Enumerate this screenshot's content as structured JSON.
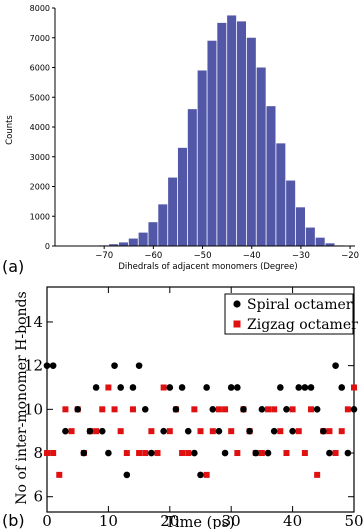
{
  "panels": {
    "a": {
      "label": "(a)"
    },
    "b": {
      "label": "(b)"
    }
  },
  "colors": {
    "bar": "#5257a8",
    "spiral": "#000000",
    "zigzag": "#e01010",
    "axis": "#000000"
  },
  "chart_data": [
    {
      "type": "bar",
      "panel": "a",
      "xlabel": "Dihedrals of adjacent monomers (Degree)",
      "ylabel": "Counts",
      "xlim": [
        -80,
        -19
      ],
      "ylim": [
        0,
        8000
      ],
      "xticks": [
        -70,
        -60,
        -50,
        -40,
        -30,
        -20
      ],
      "yticks": [
        0,
        1000,
        2000,
        3000,
        4000,
        5000,
        6000,
        7000,
        8000
      ],
      "bin_width": 2,
      "bin_starts": [
        -73,
        -71,
        -69,
        -67,
        -65,
        -63,
        -61,
        -59,
        -57,
        -55,
        -53,
        -51,
        -49,
        -47,
        -45,
        -43,
        -41,
        -39,
        -37,
        -35,
        -33,
        -31,
        -29,
        -27,
        -25,
        -23
      ],
      "values": [
        10,
        20,
        60,
        120,
        250,
        450,
        800,
        1400,
        2300,
        3300,
        4600,
        5900,
        6900,
        7500,
        7750,
        7550,
        7000,
        6000,
        4700,
        3450,
        2200,
        1300,
        620,
        280,
        90,
        20
      ]
    },
    {
      "type": "scatter",
      "panel": "b",
      "xlabel": "Time (ps)",
      "ylabel": "No of inter-monomer H-bonds",
      "xlim": [
        0,
        50
      ],
      "ylim": [
        5.3,
        15.6
      ],
      "xticks": [
        0,
        10,
        20,
        30,
        40,
        50
      ],
      "yticks": [
        6,
        8,
        10,
        12,
        14
      ],
      "legend_position": "top-right",
      "series": [
        {
          "name": "Spiral octamer",
          "marker": "circle",
          "points": [
            [
              0,
              12
            ],
            [
              1,
              12
            ],
            [
              3,
              9
            ],
            [
              5,
              10
            ],
            [
              6,
              8
            ],
            [
              7,
              9
            ],
            [
              8,
              11
            ],
            [
              9,
              9
            ],
            [
              10,
              8
            ],
            [
              11,
              12
            ],
            [
              12,
              11
            ],
            [
              13,
              7
            ],
            [
              14,
              11
            ],
            [
              15,
              12
            ],
            [
              16,
              10
            ],
            [
              17,
              8
            ],
            [
              19,
              9
            ],
            [
              20,
              11
            ],
            [
              21,
              10
            ],
            [
              22,
              11
            ],
            [
              23,
              9
            ],
            [
              24,
              8
            ],
            [
              25,
              7
            ],
            [
              26,
              11
            ],
            [
              27,
              10
            ],
            [
              28,
              9
            ],
            [
              29,
              8
            ],
            [
              30,
              11
            ],
            [
              31,
              11
            ],
            [
              32,
              10
            ],
            [
              33,
              9
            ],
            [
              34,
              8
            ],
            [
              35,
              10
            ],
            [
              36,
              8
            ],
            [
              37,
              9
            ],
            [
              38,
              11
            ],
            [
              39,
              10
            ],
            [
              40,
              9
            ],
            [
              41,
              11
            ],
            [
              42,
              11
            ],
            [
              43,
              11
            ],
            [
              44,
              10
            ],
            [
              45,
              9
            ],
            [
              46,
              8
            ],
            [
              47,
              12
            ],
            [
              48,
              11
            ],
            [
              49,
              8
            ],
            [
              50,
              10
            ]
          ]
        },
        {
          "name": "Zigzag octamer",
          "marker": "square",
          "points": [
            [
              0,
              8
            ],
            [
              1,
              8
            ],
            [
              2,
              7
            ],
            [
              3,
              10
            ],
            [
              4,
              9
            ],
            [
              5,
              10
            ],
            [
              6,
              8
            ],
            [
              7,
              9
            ],
            [
              8,
              9
            ],
            [
              9,
              10
            ],
            [
              10,
              11
            ],
            [
              11,
              10
            ],
            [
              12,
              9
            ],
            [
              13,
              8
            ],
            [
              14,
              10
            ],
            [
              15,
              8
            ],
            [
              16,
              8
            ],
            [
              17,
              9
            ],
            [
              18,
              8
            ],
            [
              19,
              11
            ],
            [
              20,
              9
            ],
            [
              21,
              10
            ],
            [
              22,
              8
            ],
            [
              23,
              8
            ],
            [
              24,
              10
            ],
            [
              25,
              9
            ],
            [
              26,
              7
            ],
            [
              27,
              9
            ],
            [
              28,
              10
            ],
            [
              29,
              10
            ],
            [
              30,
              9
            ],
            [
              31,
              8
            ],
            [
              32,
              10
            ],
            [
              33,
              9
            ],
            [
              34,
              8
            ],
            [
              35,
              8
            ],
            [
              36,
              10
            ],
            [
              37,
              10
            ],
            [
              38,
              9
            ],
            [
              39,
              8
            ],
            [
              40,
              10
            ],
            [
              41,
              9
            ],
            [
              42,
              8
            ],
            [
              43,
              10
            ],
            [
              44,
              7
            ],
            [
              45,
              9
            ],
            [
              46,
              9
            ],
            [
              47,
              8
            ],
            [
              48,
              9
            ],
            [
              49,
              10
            ],
            [
              50,
              11
            ]
          ]
        }
      ]
    }
  ]
}
